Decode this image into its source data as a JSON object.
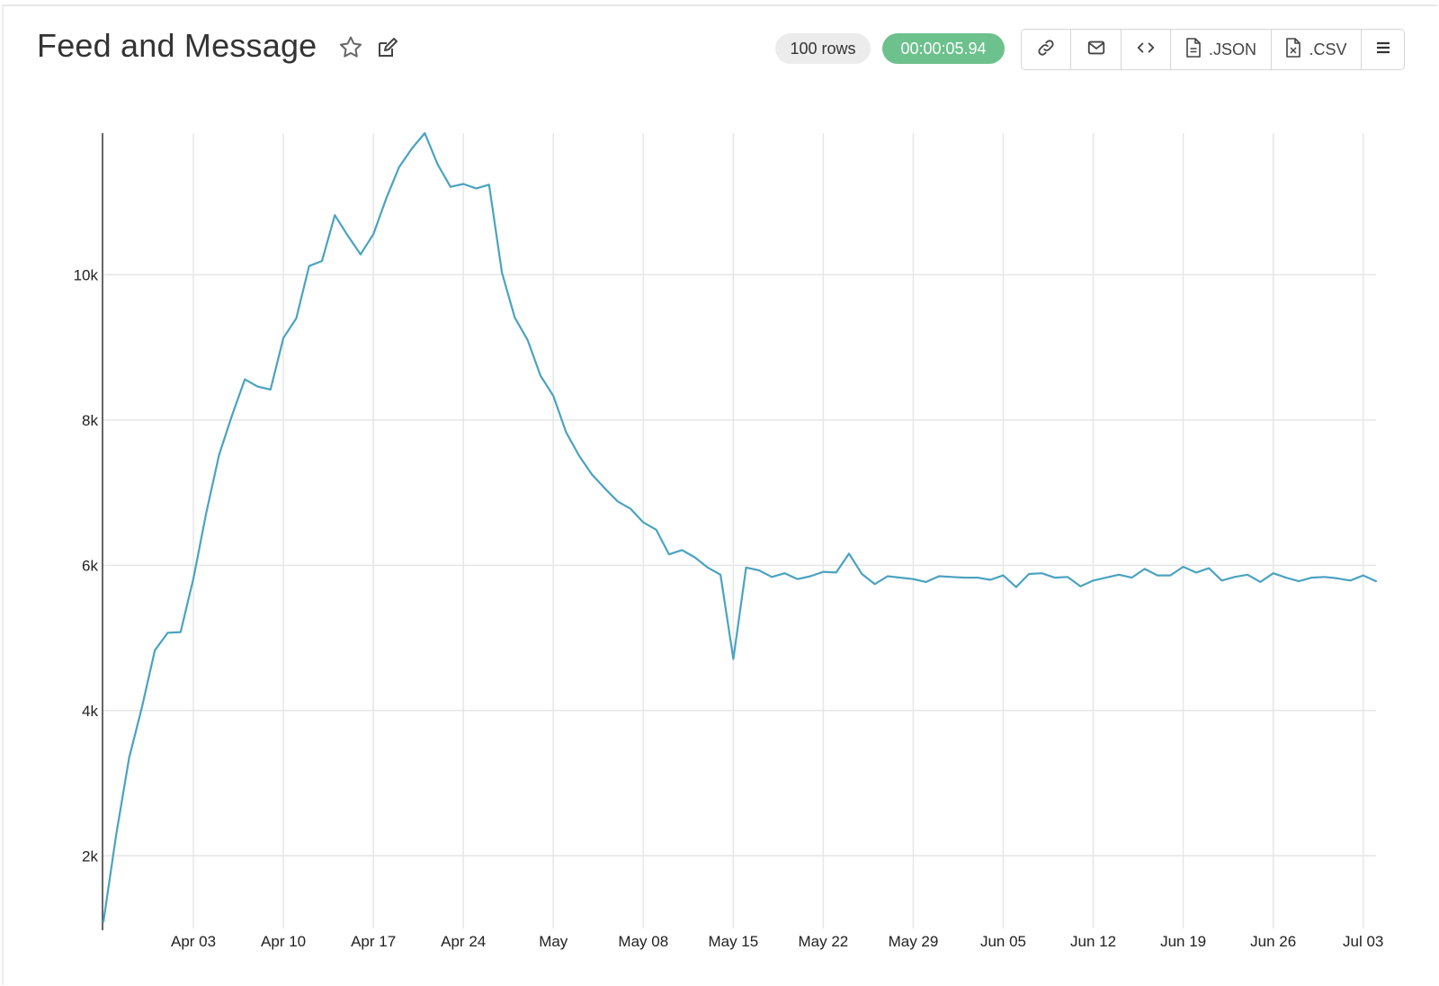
{
  "header": {
    "title": "Feed and Message",
    "rows_badge": "100 rows",
    "time_badge": "00:00:05.94",
    "json_label": ".JSON",
    "csv_label": ".CSV",
    "icons": [
      "star-icon",
      "edit-icon",
      "link-icon",
      "mail-icon",
      "code-icon",
      "file-json-icon",
      "file-csv-icon",
      "menu-icon"
    ]
  },
  "colors": {
    "line": "#4aa3c0",
    "grid": "#e6e6e6",
    "badge_time_bg": "#6cc18c",
    "badge_rows_bg": "#ececec"
  },
  "chart_data": {
    "type": "line",
    "title": "",
    "xlabel": "",
    "ylabel": "",
    "x_start": "Mar 27",
    "x_end": "Jul 05",
    "x_ticks": [
      "Apr 03",
      "Apr 10",
      "Apr 17",
      "Apr 24",
      "May",
      "May 08",
      "May 15",
      "May 22",
      "May 29",
      "Jun 05",
      "Jun 12",
      "Jun 19",
      "Jun 26",
      "Jul 03"
    ],
    "y_ticks": [
      "2k",
      "4k",
      "6k",
      "8k",
      "10k"
    ],
    "ylim": [
      1000,
      11950
    ],
    "grid": true,
    "legend": "none",
    "series": [
      {
        "values": [
          1090,
          2300,
          3350,
          4050,
          4830,
          5070,
          5080,
          5820,
          6720,
          7520,
          8060,
          8560,
          8460,
          8420,
          9130,
          9400,
          10120,
          10190,
          10820,
          10540,
          10280,
          10560,
          11050,
          11480,
          11740,
          11950,
          11520,
          11210,
          11250,
          11190,
          11240,
          10030,
          9410,
          9100,
          8610,
          8330,
          7830,
          7510,
          7250,
          7060,
          6880,
          6780,
          6590,
          6490,
          6150,
          6210,
          6110,
          5970,
          5870,
          4710,
          5970,
          5930,
          5840,
          5890,
          5810,
          5850,
          5910,
          5900,
          6160,
          5880,
          5740,
          5850,
          5830,
          5810,
          5770,
          5850,
          5840,
          5830,
          5830,
          5800,
          5860,
          5700,
          5880,
          5890,
          5830,
          5840,
          5710,
          5790,
          5830,
          5870,
          5830,
          5950,
          5860,
          5860,
          5980,
          5900,
          5960,
          5790,
          5840,
          5870,
          5770,
          5890,
          5830,
          5780,
          5830,
          5840,
          5820,
          5790,
          5860,
          5780
        ]
      }
    ]
  }
}
